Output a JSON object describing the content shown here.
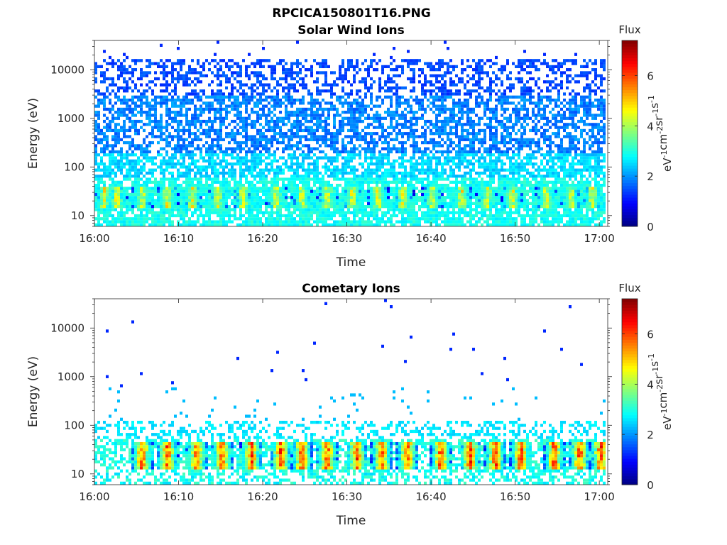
{
  "figure": {
    "title": "RPCICA150801T16.PNG",
    "colorbar_label": "Flux",
    "colorbar_unit_base": [
      "eV",
      "cm",
      "sr",
      "s"
    ],
    "colorbar_unit_exp": [
      "-1",
      "-2",
      "-1",
      "-1"
    ]
  },
  "chart_data": [
    {
      "type": "heatmap",
      "title": "Solar Wind Ions",
      "xlabel": "Time",
      "ylabel": "Energy (eV)",
      "xlim": [
        "16:00",
        "17:01"
      ],
      "ylim": [
        6,
        40000
      ],
      "yscale": "log",
      "x_tick_labels": [
        "16:00",
        "16:10",
        "16:20",
        "16:30",
        "16:40",
        "16:50",
        "17:00"
      ],
      "x_tick_minutes": [
        0,
        10,
        20,
        30,
        40,
        50,
        60
      ],
      "y_tick_labels": [
        "10",
        "100",
        "1000",
        "10000"
      ],
      "y_tick_values": [
        10,
        100,
        1000,
        10000
      ],
      "colorbar": {
        "label": "Flux",
        "range": [
          0,
          7.4
        ],
        "ticks": [
          "0",
          "2",
          "4",
          "6"
        ],
        "tick_values": [
          0,
          2,
          4,
          6
        ],
        "colormap": "jet"
      },
      "bursts_minutes": [
        1,
        2.5,
        5.5,
        8.5,
        11.5,
        14.5,
        17.5,
        21.5,
        24.5,
        27.5,
        30.5,
        33.5,
        36.5,
        40,
        43.5,
        46.5,
        49.5,
        53.5,
        56.5,
        59
      ],
      "burst_energy_ev": [
        15,
        40
      ],
      "burst_peak_flux": 4.8
    },
    {
      "type": "heatmap",
      "title": "Cometary Ions",
      "xlabel": "Time",
      "ylabel": "Energy (eV)",
      "xlim": [
        "16:00",
        "17:01"
      ],
      "ylim": [
        6,
        40000
      ],
      "yscale": "log",
      "x_tick_labels": [
        "16:00",
        "16:10",
        "16:20",
        "16:30",
        "16:40",
        "16:50",
        "17:00"
      ],
      "x_tick_minutes": [
        0,
        10,
        20,
        30,
        40,
        50,
        60
      ],
      "y_tick_labels": [
        "10",
        "100",
        "1000",
        "10000"
      ],
      "y_tick_values": [
        10,
        100,
        1000,
        10000
      ],
      "colorbar": {
        "label": "Flux",
        "range": [
          0,
          7.4
        ],
        "ticks": [
          "0",
          "2",
          "4",
          "6"
        ],
        "tick_values": [
          0,
          2,
          4,
          6
        ],
        "colormap": "jet"
      },
      "bursts_minutes": [
        5.5,
        8.5,
        12,
        15,
        18.5,
        22,
        24.5,
        27.5,
        31,
        34,
        37,
        41,
        44.5,
        47.5,
        50.5,
        54.5,
        57.5,
        60
      ],
      "burst_energy_ev": [
        12,
        45
      ],
      "burst_peak_flux": 6.4
    }
  ]
}
